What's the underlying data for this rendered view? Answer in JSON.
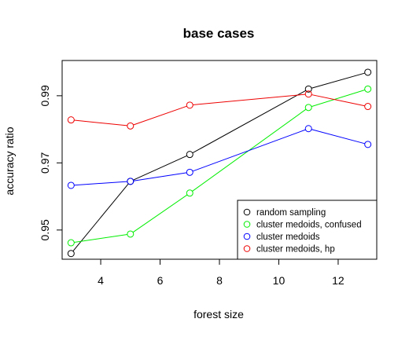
{
  "chart_data": {
    "type": "line",
    "title": "base cases",
    "xlabel": "forest size",
    "ylabel": "accuracy ratio",
    "xlim": [
      2.7,
      13.3
    ],
    "ylim": [
      0.9413,
      1.0005
    ],
    "x_ticks": [
      4,
      6,
      8,
      10,
      12
    ],
    "y_ticks": [
      0.95,
      0.97,
      0.99
    ],
    "x": [
      3,
      5,
      7,
      11,
      13
    ],
    "legend_position": "bottom-right",
    "series": [
      {
        "name": "random sampling",
        "color": "#000000",
        "values": [
          0.943,
          0.9645,
          0.9725,
          0.992,
          0.997
        ]
      },
      {
        "name": "cluster medoids, confused",
        "color": "#00ee00",
        "values": [
          0.9462,
          0.9488,
          0.961,
          0.9865,
          0.992
        ]
      },
      {
        "name": "cluster medoids",
        "color": "#0000ff",
        "values": [
          0.9633,
          0.9645,
          0.9672,
          0.9802,
          0.9755
        ]
      },
      {
        "name": "cluster medoids, hp",
        "color": "#ee0000",
        "values": [
          0.9828,
          0.981,
          0.9872,
          0.9905,
          0.9868
        ]
      }
    ]
  }
}
